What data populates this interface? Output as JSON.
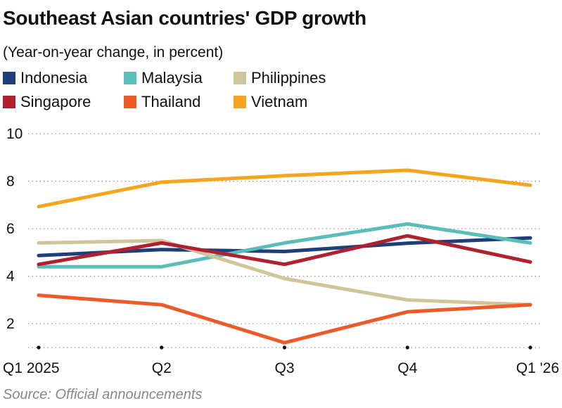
{
  "title": "Southeast Asian countries' GDP growth",
  "subtitle": "(Year-on-year change, in percent)",
  "source": "Source: Official announcements",
  "chart_data": {
    "type": "line",
    "categories": [
      "Q1 2025",
      "Q2",
      "Q3",
      "Q4",
      "Q1 '26"
    ],
    "ylim": [
      1,
      10
    ],
    "yticks": [
      2,
      4,
      6,
      8,
      10
    ],
    "grid": "horizontal dotted",
    "legend_position": "top-left",
    "series": [
      {
        "name": "Indonesia",
        "color": "#1f3f7a",
        "values": [
          4.87,
          5.12,
          5.04,
          5.39,
          5.61
        ]
      },
      {
        "name": "Malaysia",
        "color": "#5bbdb8",
        "values": [
          4.4,
          4.4,
          5.4,
          6.2,
          5.4
        ]
      },
      {
        "name": "Philippines",
        "color": "#cfc49a",
        "values": [
          5.4,
          5.5,
          3.9,
          3.0,
          2.8
        ]
      },
      {
        "name": "Singapore",
        "color": "#b0202e",
        "values": [
          4.5,
          5.4,
          4.5,
          5.7,
          4.6
        ]
      },
      {
        "name": "Thailand",
        "color": "#ec5a27",
        "values": [
          3.2,
          2.8,
          1.2,
          2.5,
          2.8
        ]
      },
      {
        "name": "Vietnam",
        "color": "#f5a51f",
        "values": [
          6.93,
          7.96,
          8.23,
          8.46,
          7.83
        ]
      }
    ]
  }
}
